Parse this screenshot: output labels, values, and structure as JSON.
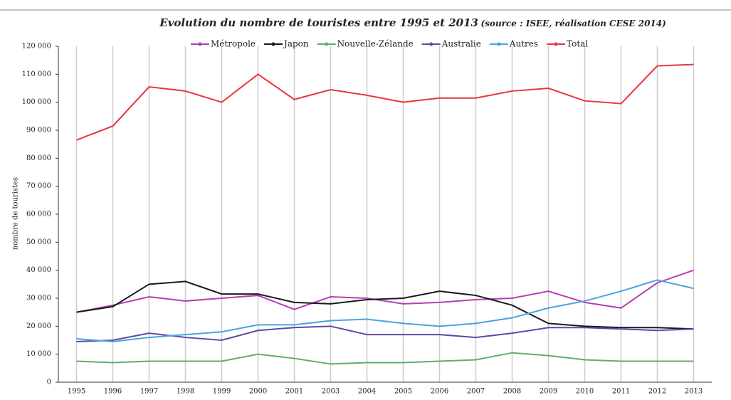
{
  "chart_data": {
    "type": "line",
    "title": "Evolution du nombre de touristes entre 1995 et 2013",
    "subtitle": "(source : ISEE, réalisation CESE 2014)",
    "ylabel": "nombre de touristes",
    "categories": [
      "1995",
      "1996",
      "1997",
      "1998",
      "1999",
      "2000",
      "2001",
      "2003",
      "2004",
      "2005",
      "2006",
      "2007",
      "2008",
      "2009",
      "2010",
      "2011",
      "2012",
      "2013"
    ],
    "ylim": [
      0,
      120000
    ],
    "yticks": [
      0,
      {
        "value": 10000,
        "label": "10 000"
      },
      {
        "value": 20000,
        "label": "20 000"
      },
      {
        "value": 30000,
        "label": "30 000"
      },
      {
        "value": 40000,
        "label": "40 000"
      },
      {
        "value": 50000,
        "label": "50 000"
      },
      {
        "value": 60000,
        "label": "60 000"
      },
      {
        "value": 70000,
        "label": "70 000"
      },
      {
        "value": 80000,
        "label": "80 000"
      },
      {
        "value": 90000,
        "label": "90 000"
      },
      {
        "value": 100000,
        "label": "100 000"
      },
      {
        "value": 110000,
        "label": "110 000"
      },
      {
        "value": 120000,
        "label": "120 000"
      }
    ],
    "grid": true,
    "legend": "top",
    "series": [
      {
        "name": "Métropole",
        "color": "#b43fb4",
        "values": [
          25000,
          27500,
          30500,
          29000,
          30000,
          31000,
          26000,
          30500,
          30000,
          28000,
          28500,
          29500,
          30000,
          32500,
          28500,
          26500,
          35500,
          40000
        ]
      },
      {
        "name": "Japon",
        "color": "#1a1a1a",
        "values": [
          25000,
          27000,
          35000,
          36000,
          31500,
          31500,
          28500,
          28000,
          29500,
          30000,
          32500,
          31000,
          27500,
          21000,
          20000,
          19500,
          19500,
          19000
        ]
      },
      {
        "name": "Nouvelle-Zélande",
        "color": "#5fae6e",
        "values": [
          7500,
          7000,
          7500,
          7500,
          7500,
          10000,
          8500,
          6500,
          7000,
          7000,
          7500,
          8000,
          10500,
          9500,
          8000,
          7500,
          7500,
          7500
        ]
      },
      {
        "name": "Australie",
        "color": "#5b4aa8",
        "values": [
          14500,
          15000,
          17500,
          16000,
          15000,
          18500,
          19500,
          20000,
          17000,
          17000,
          17000,
          16000,
          17500,
          19500,
          19500,
          19000,
          18500,
          19000
        ]
      },
      {
        "name": "Autres",
        "color": "#4aa3df",
        "values": [
          15500,
          14500,
          16000,
          17000,
          18000,
          20500,
          20500,
          22000,
          22500,
          21000,
          20000,
          21000,
          23000,
          26500,
          29000,
          32500,
          36500,
          33500
        ]
      },
      {
        "name": "Total",
        "color": "#e8363a",
        "values": [
          86500,
          91500,
          105500,
          104000,
          100000,
          110000,
          101000,
          104500,
          102500,
          100000,
          101500,
          101500,
          104000,
          105000,
          100500,
          99500,
          113000,
          113500
        ]
      }
    ]
  }
}
